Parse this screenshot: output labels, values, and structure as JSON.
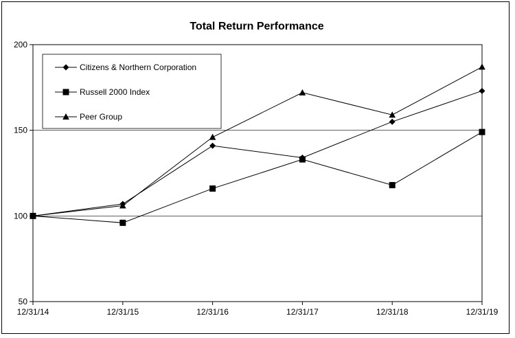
{
  "chart_data": {
    "type": "line",
    "title": "Total Return Performance",
    "xlabel": "",
    "ylabel": "",
    "x": [
      "12/31/14",
      "12/31/15",
      "12/31/16",
      "12/31/17",
      "12/31/18",
      "12/31/19"
    ],
    "yticks": [
      "50",
      "100",
      "150",
      "200"
    ],
    "ylim": [
      50,
      200
    ],
    "grid": "horizontal",
    "legend_position": "top-left",
    "series": [
      {
        "name": "Citizens & Northern Corporation",
        "marker": "diamond",
        "color": "#000000",
        "values": [
          100,
          107,
          141,
          134,
          155,
          173
        ]
      },
      {
        "name": "Russell 2000 Index",
        "marker": "square",
        "color": "#000000",
        "values": [
          100,
          96,
          116,
          133,
          118,
          149
        ]
      },
      {
        "name": "Peer Group",
        "marker": "triangle",
        "color": "#000000",
        "values": [
          100,
          106,
          146,
          172,
          159,
          187
        ]
      }
    ]
  }
}
